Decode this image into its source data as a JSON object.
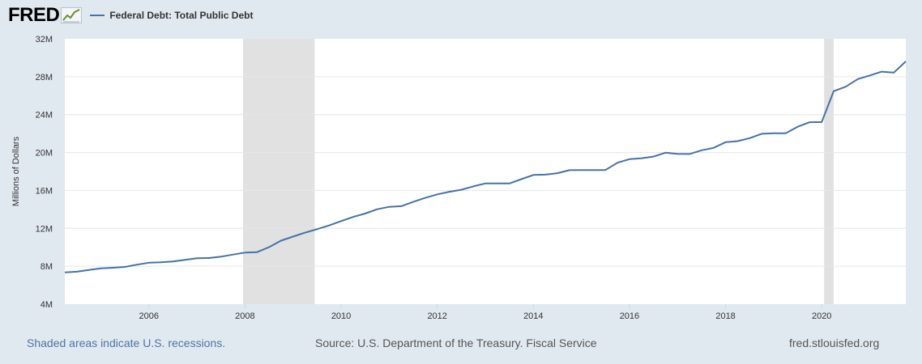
{
  "header": {
    "logo": "FRED",
    "legend_label": "Federal Debt: Total Public Debt",
    "line_color": "#4572a7"
  },
  "chart_data": {
    "type": "line",
    "title": "Federal Debt: Total Public Debt",
    "xlabel": "",
    "ylabel": "Millions of Dollars",
    "ylim": [
      4,
      32
    ],
    "xlim": [
      2004.25,
      2021.75
    ],
    "yticks": [
      {
        "value": 4,
        "label": "4M"
      },
      {
        "value": 8,
        "label": "8M"
      },
      {
        "value": 12,
        "label": "12M"
      },
      {
        "value": 16,
        "label": "16M"
      },
      {
        "value": 20,
        "label": "20M"
      },
      {
        "value": 24,
        "label": "24M"
      },
      {
        "value": 28,
        "label": "28M"
      },
      {
        "value": 32,
        "label": "32M"
      }
    ],
    "xticks": [
      {
        "value": 2006,
        "label": "2006"
      },
      {
        "value": 2008,
        "label": "2008"
      },
      {
        "value": 2010,
        "label": "2010"
      },
      {
        "value": 2012,
        "label": "2012"
      },
      {
        "value": 2014,
        "label": "2014"
      },
      {
        "value": 2016,
        "label": "2016"
      },
      {
        "value": 2018,
        "label": "2018"
      },
      {
        "value": 2020,
        "label": "2020"
      }
    ],
    "recessions": [
      [
        2007.96,
        2009.45
      ],
      [
        2020.05,
        2020.25
      ]
    ],
    "grid": true,
    "series": [
      {
        "name": "Federal Debt: Total Public Debt",
        "x": [
          2004.25,
          2004.5,
          2004.75,
          2005.0,
          2005.25,
          2005.5,
          2005.75,
          2006.0,
          2006.25,
          2006.5,
          2006.75,
          2007.0,
          2007.25,
          2007.5,
          2007.75,
          2008.0,
          2008.25,
          2008.5,
          2008.75,
          2009.0,
          2009.25,
          2009.5,
          2009.75,
          2010.0,
          2010.25,
          2010.5,
          2010.75,
          2011.0,
          2011.25,
          2011.5,
          2011.75,
          2012.0,
          2012.25,
          2012.5,
          2012.75,
          2013.0,
          2013.25,
          2013.5,
          2013.75,
          2014.0,
          2014.25,
          2014.5,
          2014.75,
          2015.0,
          2015.25,
          2015.5,
          2015.75,
          2016.0,
          2016.25,
          2016.5,
          2016.75,
          2017.0,
          2017.25,
          2017.5,
          2017.75,
          2018.0,
          2018.25,
          2018.5,
          2018.75,
          2019.0,
          2019.25,
          2019.5,
          2019.75,
          2020.0,
          2020.25,
          2020.5,
          2020.75,
          2021.0,
          2021.25,
          2021.5,
          2021.75
        ],
        "values": [
          7.35,
          7.42,
          7.6,
          7.78,
          7.84,
          7.93,
          8.17,
          8.37,
          8.42,
          8.51,
          8.68,
          8.85,
          8.87,
          9.01,
          9.23,
          9.44,
          9.49,
          10.02,
          10.7,
          11.13,
          11.55,
          11.91,
          12.31,
          12.77,
          13.2,
          13.56,
          14.01,
          14.27,
          14.34,
          14.79,
          15.22,
          15.58,
          15.86,
          16.07,
          16.43,
          16.74,
          16.74,
          16.74,
          17.19,
          17.63,
          17.67,
          17.82,
          18.14,
          18.15,
          18.15,
          18.15,
          18.92,
          19.3,
          19.4,
          19.57,
          19.98,
          19.85,
          19.84,
          20.24,
          20.49,
          21.09,
          21.2,
          21.52,
          21.98,
          22.03,
          22.03,
          22.72,
          23.2,
          23.22,
          26.48,
          26.95,
          27.75,
          28.13,
          28.53,
          28.43,
          29.62
        ]
      }
    ]
  },
  "footer": {
    "recession_note": "Shaded areas indicate U.S. recessions.",
    "source": "Source: U.S. Department of the Treasury. Fiscal Service",
    "site": "fred.stlouisfed.org"
  }
}
